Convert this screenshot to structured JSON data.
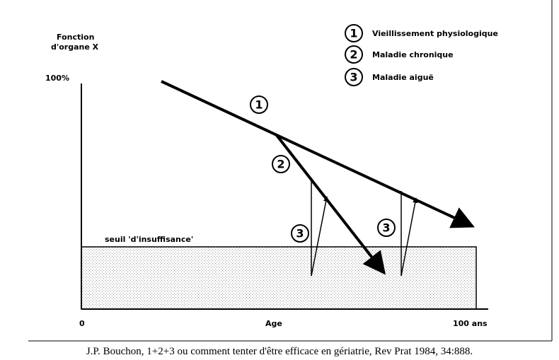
{
  "y_axis": {
    "label_lines": [
      "Fonction",
      "d'organe X"
    ],
    "top_label": "100%"
  },
  "x_axis": {
    "start_label": "0",
    "middle_label": "Age",
    "end_label": "100 ans"
  },
  "legend": [
    {
      "number": "1",
      "label": "Vieillissement physiologique"
    },
    {
      "number": "2",
      "label": "Maladie chronique"
    },
    {
      "number": "3",
      "label": "Maladie aiguë"
    }
  ],
  "threshold_label": "seuil 'd'insuffisance'",
  "curve_markers": [
    "1",
    "2",
    "3",
    "3"
  ],
  "caption": "J.P. Bouchon, 1+2+3 ou comment tenter d'être efficace en gériatrie, Rev Prat 1984, 34:888."
}
